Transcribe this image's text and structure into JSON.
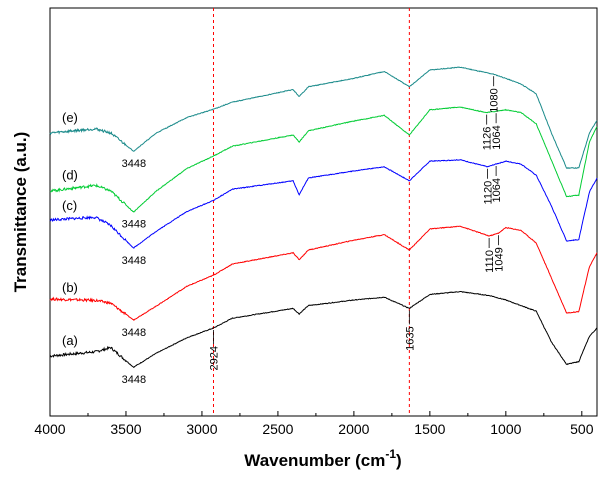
{
  "chart_data": {
    "type": "line",
    "xlabel": "Wavenumber (cm",
    "xlabel_sup": "-1",
    "xlabel_suffix": ")",
    "ylabel": "Transmittance (a.u.)",
    "xlim": [
      4000,
      400
    ],
    "x_ticks": [
      4000,
      3500,
      3000,
      2500,
      2000,
      1500,
      1000,
      500
    ],
    "reference_lines": [
      2924,
      1635
    ],
    "reference_line_color": "#ff0000",
    "grid": false,
    "series": [
      {
        "name": "(a)",
        "color": "#000000",
        "offset": 0,
        "points": [
          [
            4000,
            0.1
          ],
          [
            3700,
            0.13
          ],
          [
            3600,
            0.16
          ],
          [
            3450,
            0.02
          ],
          [
            3300,
            0.12
          ],
          [
            3100,
            0.23
          ],
          [
            2924,
            0.3
          ],
          [
            2800,
            0.37
          ],
          [
            2400,
            0.44
          ],
          [
            2360,
            0.4
          ],
          [
            2300,
            0.46
          ],
          [
            2000,
            0.5
          ],
          [
            1800,
            0.52
          ],
          [
            1635,
            0.44
          ],
          [
            1500,
            0.54
          ],
          [
            1300,
            0.56
          ],
          [
            1100,
            0.53
          ],
          [
            1000,
            0.5
          ],
          [
            900,
            0.46
          ],
          [
            800,
            0.42
          ],
          [
            700,
            0.2
          ],
          [
            600,
            0.04
          ],
          [
            520,
            0.06
          ],
          [
            450,
            0.24
          ],
          [
            400,
            0.3
          ]
        ],
        "annotations": [
          {
            "wavenumber": 3448,
            "label": "3448"
          },
          {
            "wavenumber": 2924,
            "label": "2924"
          },
          {
            "wavenumber": 1635,
            "label": "1635"
          }
        ]
      },
      {
        "name": "(b)",
        "color": "#ff0000",
        "offset": 1,
        "points": [
          [
            4000,
            0.15
          ],
          [
            3700,
            0.14
          ],
          [
            3600,
            0.12
          ],
          [
            3450,
            0.0
          ],
          [
            3300,
            0.1
          ],
          [
            3100,
            0.24
          ],
          [
            2924,
            0.32
          ],
          [
            2800,
            0.4
          ],
          [
            2400,
            0.48
          ],
          [
            2360,
            0.43
          ],
          [
            2300,
            0.5
          ],
          [
            2000,
            0.57
          ],
          [
            1800,
            0.61
          ],
          [
            1635,
            0.5
          ],
          [
            1500,
            0.65
          ],
          [
            1300,
            0.67
          ],
          [
            1110,
            0.6
          ],
          [
            1049,
            0.62
          ],
          [
            1000,
            0.66
          ],
          [
            900,
            0.64
          ],
          [
            800,
            0.55
          ],
          [
            700,
            0.3
          ],
          [
            600,
            0.05
          ],
          [
            520,
            0.06
          ],
          [
            450,
            0.38
          ],
          [
            400,
            0.48
          ]
        ],
        "annotations": [
          {
            "wavenumber": 3448,
            "label": "3448"
          },
          {
            "wavenumber": 1110,
            "label": "1110"
          },
          {
            "wavenumber": 1049,
            "label": "1049"
          }
        ]
      },
      {
        "name": "(c)",
        "color": "#0000ff",
        "offset": 2,
        "points": [
          [
            4000,
            0.2
          ],
          [
            3700,
            0.22
          ],
          [
            3600,
            0.16
          ],
          [
            3450,
            0.0
          ],
          [
            3300,
            0.12
          ],
          [
            3100,
            0.26
          ],
          [
            2924,
            0.34
          ],
          [
            2800,
            0.42
          ],
          [
            2400,
            0.48
          ],
          [
            2360,
            0.38
          ],
          [
            2300,
            0.5
          ],
          [
            2000,
            0.55
          ],
          [
            1800,
            0.58
          ],
          [
            1635,
            0.48
          ],
          [
            1500,
            0.62
          ],
          [
            1300,
            0.63
          ],
          [
            1120,
            0.58
          ],
          [
            1064,
            0.6
          ],
          [
            1000,
            0.62
          ],
          [
            900,
            0.6
          ],
          [
            800,
            0.52
          ],
          [
            700,
            0.3
          ],
          [
            600,
            0.05
          ],
          [
            520,
            0.06
          ],
          [
            450,
            0.4
          ],
          [
            400,
            0.5
          ]
        ],
        "annotations": [
          {
            "wavenumber": 3448,
            "label": "3448"
          },
          {
            "wavenumber": 1120,
            "label": "1120"
          },
          {
            "wavenumber": 1064,
            "label": "1064"
          }
        ]
      },
      {
        "name": "(d)",
        "color": "#00cc33",
        "offset": 3,
        "points": [
          [
            4000,
            0.1
          ],
          [
            3700,
            0.14
          ],
          [
            3600,
            0.1
          ],
          [
            3450,
            -0.05
          ],
          [
            3300,
            0.1
          ],
          [
            3100,
            0.26
          ],
          [
            2924,
            0.35
          ],
          [
            2800,
            0.42
          ],
          [
            2400,
            0.5
          ],
          [
            2360,
            0.45
          ],
          [
            2300,
            0.53
          ],
          [
            2000,
            0.6
          ],
          [
            1800,
            0.64
          ],
          [
            1635,
            0.5
          ],
          [
            1500,
            0.68
          ],
          [
            1300,
            0.7
          ],
          [
            1126,
            0.66
          ],
          [
            1064,
            0.67
          ],
          [
            1000,
            0.68
          ],
          [
            900,
            0.66
          ],
          [
            800,
            0.58
          ],
          [
            700,
            0.32
          ],
          [
            600,
            0.06
          ],
          [
            520,
            0.07
          ],
          [
            450,
            0.45
          ],
          [
            400,
            0.56
          ]
        ],
        "annotations": [
          {
            "wavenumber": 3448,
            "label": "3448"
          },
          {
            "wavenumber": 1126,
            "label": "1126"
          },
          {
            "wavenumber": 1064,
            "label": "1064"
          }
        ]
      },
      {
        "name": "(e)",
        "color": "#1a8a8a",
        "offset": 4,
        "points": [
          [
            4000,
            0.05
          ],
          [
            3700,
            0.08
          ],
          [
            3600,
            0.05
          ],
          [
            3450,
            -0.08
          ],
          [
            3300,
            0.05
          ],
          [
            3100,
            0.16
          ],
          [
            2924,
            0.22
          ],
          [
            2800,
            0.27
          ],
          [
            2400,
            0.36
          ],
          [
            2360,
            0.31
          ],
          [
            2300,
            0.38
          ],
          [
            2000,
            0.44
          ],
          [
            1800,
            0.49
          ],
          [
            1635,
            0.38
          ],
          [
            1500,
            0.5
          ],
          [
            1300,
            0.52
          ],
          [
            1080,
            0.47
          ],
          [
            1000,
            0.44
          ],
          [
            900,
            0.4
          ],
          [
            800,
            0.33
          ],
          [
            700,
            0.05
          ],
          [
            600,
            -0.2
          ],
          [
            520,
            -0.2
          ],
          [
            450,
            0.05
          ],
          [
            400,
            0.14
          ]
        ],
        "annotations": [
          {
            "wavenumber": 3448,
            "label": "3448"
          },
          {
            "wavenumber": 1080,
            "label": "1080"
          }
        ]
      }
    ]
  }
}
